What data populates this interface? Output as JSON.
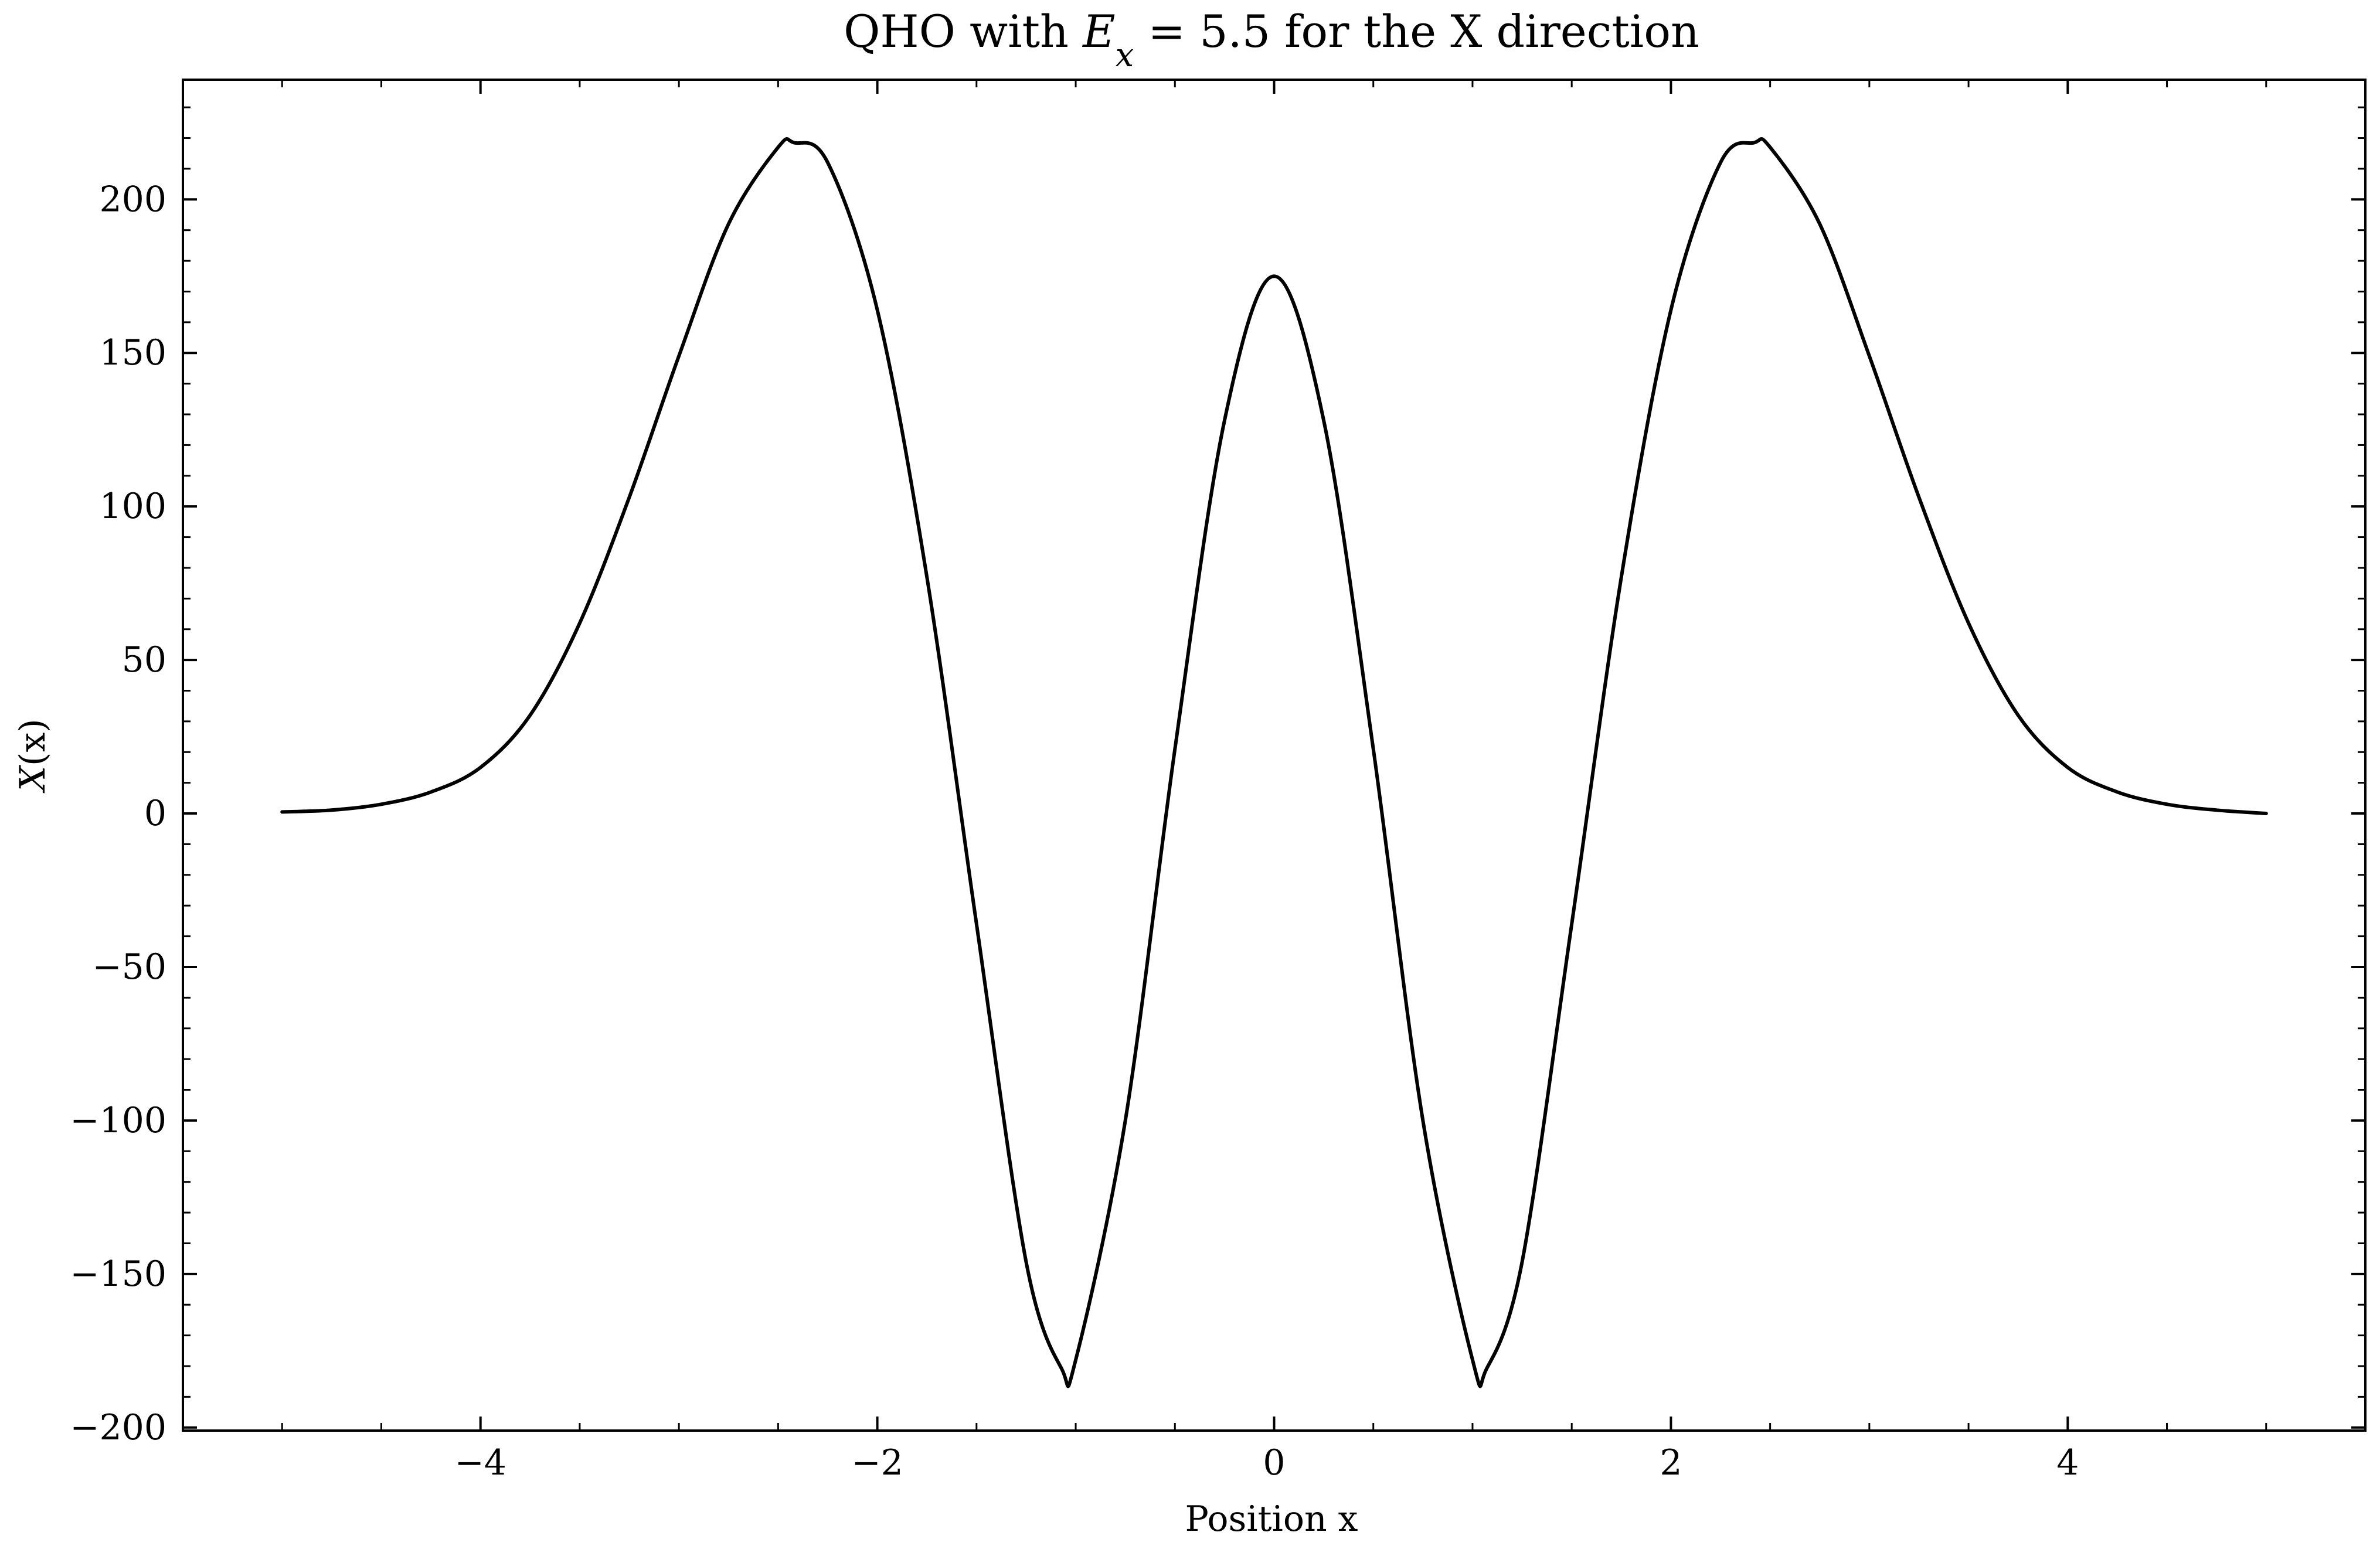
{
  "chart_data": {
    "type": "line",
    "title": {
      "prefix": "QHO with ",
      "symbol": "E",
      "subscript": "x",
      "suffix": " = 5.5 for the X direction"
    },
    "xlabel": "Position x",
    "ylabel": {
      "func": "X",
      "arg": "(x)"
    },
    "xlim": [
      -5.5,
      5.5
    ],
    "ylim": [
      -201,
      239
    ],
    "xticks": [
      -4,
      -2,
      0,
      2,
      4
    ],
    "xtick_labels": [
      "−4",
      "−2",
      "0",
      "2",
      "4"
    ],
    "yticks": [
      -200,
      -150,
      -100,
      -50,
      0,
      50,
      100,
      150,
      200
    ],
    "ytick_labels": [
      "−200",
      "−150",
      "−100",
      "−50",
      "0",
      "50",
      "100",
      "150",
      "200"
    ],
    "grid": false,
    "line_color": "#000000",
    "series": [
      {
        "x": [
          -5.0,
          -4.75,
          -4.5,
          -4.25,
          -4.0,
          -3.75,
          -3.5,
          -3.25,
          -3.0,
          -2.75,
          -2.5,
          -2.42,
          -2.25,
          -2.0,
          -1.75,
          -1.5,
          -1.25,
          -1.07,
          -1.0,
          -0.75,
          -0.5,
          -0.25,
          0.0,
          0.25,
          0.5,
          0.75,
          1.0,
          1.07,
          1.25,
          1.5,
          1.75,
          2.0,
          2.25,
          2.42,
          2.5,
          2.75,
          3.0,
          3.25,
          3.5,
          3.75,
          4.0,
          4.25,
          4.5,
          4.75,
          5.0
        ],
        "y": [
          0.5,
          1.1,
          3.0,
          7.0,
          15.0,
          32.0,
          62.0,
          103.0,
          149.0,
          192.0,
          217.0,
          218.5,
          212.0,
          164.0,
          77.0,
          -36.0,
          -146.0,
          -181.0,
          -178.0,
          -100.0,
          21.0,
          128.0,
          175.0,
          128.0,
          21.0,
          -100.0,
          -178.0,
          -181.0,
          -146.0,
          -36.0,
          77.0,
          164.0,
          212.0,
          218.5,
          217.0,
          192.0,
          149.0,
          103.0,
          62.0,
          32.0,
          15.0,
          7.0,
          3.0,
          1.1,
          0.0
        ]
      }
    ]
  }
}
